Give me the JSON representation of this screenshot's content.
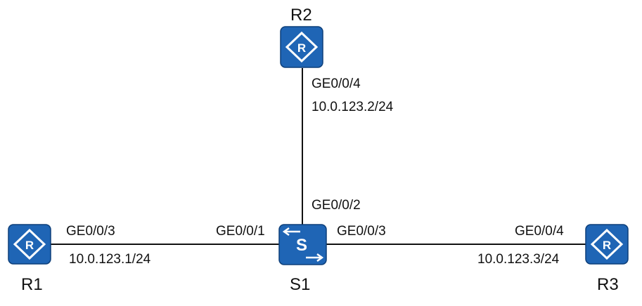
{
  "devices": {
    "r1": {
      "name": "R1",
      "icon": "router-icon",
      "glyph": "R"
    },
    "r2": {
      "name": "R2",
      "icon": "router-icon",
      "glyph": "R"
    },
    "r3": {
      "name": "R3",
      "icon": "router-icon",
      "glyph": "R"
    },
    "s1": {
      "name": "S1",
      "icon": "switch-icon",
      "glyph": "S"
    }
  },
  "links": {
    "r1_s1": {
      "r1_port": "GE0/0/3",
      "r1_ip": "10.0.123.1/24",
      "s1_port": "GE0/0/1"
    },
    "r2_s1": {
      "r2_port": "GE0/0/4",
      "r2_ip": "10.0.123.2/24",
      "s1_port": "GE0/0/2"
    },
    "s1_r3": {
      "s1_port": "GE0/0/3",
      "r3_port": "GE0/0/4",
      "r3_ip": "10.0.123.3/24"
    }
  },
  "colors": {
    "device_fill": "#1f65b5",
    "device_stroke": "#0d3f7a",
    "link": "#111111",
    "glyph": "#ffffff"
  }
}
